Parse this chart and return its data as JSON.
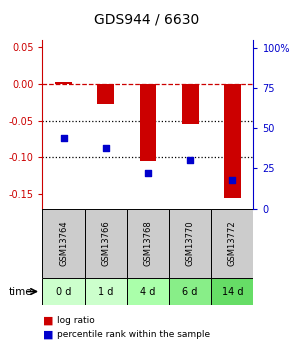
{
  "title": "GDS944 / 6630",
  "samples": [
    "GSM13764",
    "GSM13766",
    "GSM13768",
    "GSM13770",
    "GSM13772"
  ],
  "time_labels": [
    "0 d",
    "1 d",
    "4 d",
    "6 d",
    "14 d"
  ],
  "log_ratio": [
    0.002,
    -0.028,
    -0.105,
    -0.055,
    -0.155
  ],
  "percentile_rank": [
    44,
    38,
    22,
    30,
    18
  ],
  "bar_color": "#cc0000",
  "dot_color": "#0000cc",
  "bar_width": 0.4,
  "ylim_left": [
    -0.17,
    0.06
  ],
  "ylim_right": [
    0,
    105
  ],
  "yticks_left": [
    0.05,
    0,
    -0.05,
    -0.1,
    -0.15
  ],
  "yticks_right": [
    0,
    25,
    50,
    75,
    100
  ],
  "hline_dashed_color": "#cc0000",
  "dotted_line_color": "#000000",
  "dotted_lines": [
    -0.05,
    -0.1
  ],
  "sample_box_color": "#cccccc",
  "time_box_colors": [
    "#ccffcc",
    "#ccffcc",
    "#aaffaa",
    "#88ee88",
    "#66dd66"
  ],
  "legend_log_ratio": "log ratio",
  "legend_percentile": "percentile rank within the sample",
  "xlabel_time": "time",
  "title_fontsize": 10,
  "tick_fontsize": 7,
  "sample_fontsize": 6,
  "time_fontsize": 7
}
